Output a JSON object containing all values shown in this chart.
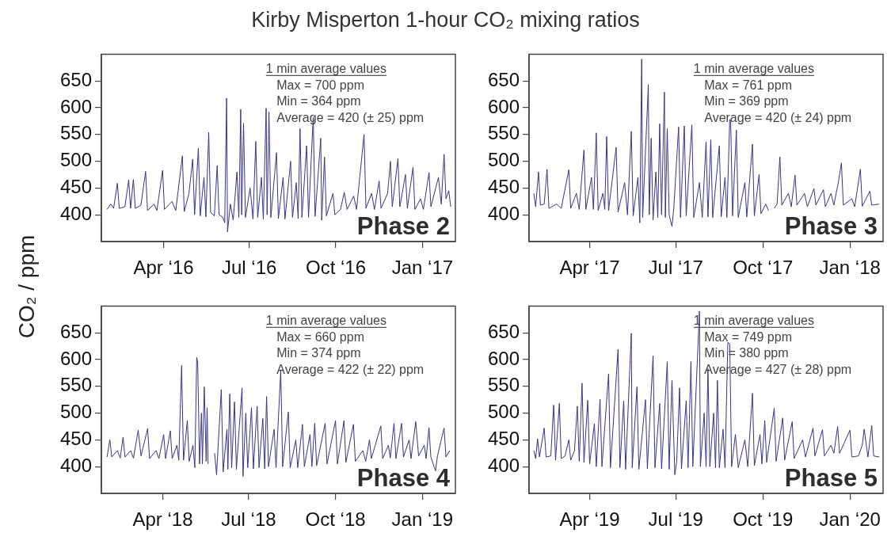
{
  "chart_data": [
    {
      "type": "line",
      "title": "Kirby Misperton 1-hour CO₂ mixing ratios",
      "ylabel": "CO₂ / ppm",
      "annotations": [
        "1 min average values",
        "Max = 700 ppm",
        "Min = 364 ppm",
        "Average = 420 (± 25) ppm",
        "Phase 2"
      ],
      "xlim": [
        "2016-01-26",
        "2017-02-05"
      ],
      "ylim": [
        350,
        700
      ],
      "yticks": [
        400,
        450,
        500,
        550,
        600,
        650
      ],
      "xticks": [
        {
          "value": "2016-04-01",
          "label": "Apr ‘16"
        },
        {
          "value": "2016-07-01",
          "label": "Jul ‘16"
        },
        {
          "value": "2016-10-01",
          "label": "Oct ‘16"
        },
        {
          "value": "2017-01-01",
          "label": "Jan ‘17"
        }
      ],
      "x": [
        "2016-02-01",
        "2016-02-05",
        "2016-02-08",
        "2016-02-12",
        "2016-02-14",
        "2016-02-20",
        "2016-02-24",
        "2016-02-26",
        "2016-02-29",
        "2016-03-02",
        "2016-03-08",
        "2016-03-13",
        "2016-03-15",
        "2016-03-22",
        "2016-03-25",
        "2016-03-31",
        "2016-04-02",
        "2016-04-10",
        "2016-04-14",
        "2016-04-21",
        "2016-04-23",
        "2016-04-28",
        "2016-05-02",
        "2016-05-04",
        "2016-05-08",
        "2016-05-10",
        "2016-05-14",
        "2016-05-16",
        "2016-05-19",
        "2016-05-21",
        "2016-05-25",
        "2016-05-28",
        "2016-05-30",
        "2016-06-03",
        "2016-06-05",
        "2016-06-07",
        "2016-06-08",
        "2016-06-11",
        "2016-06-14",
        "2016-06-18",
        "2016-06-20",
        "2016-06-22",
        "2016-06-23",
        "2016-06-25",
        "2016-06-27",
        "2016-07-02",
        "2016-07-05",
        "2016-07-08",
        "2016-07-10",
        "2016-07-14",
        "2016-07-16",
        "2016-07-19",
        "2016-07-20",
        "2016-07-22",
        "2016-07-24",
        "2016-07-30",
        "2016-08-01",
        "2016-08-06",
        "2016-08-08",
        "2016-08-14",
        "2016-08-16",
        "2016-08-20",
        "2016-08-22",
        "2016-08-24",
        "2016-08-26",
        "2016-08-31",
        "2016-09-02",
        "2016-09-07",
        "2016-09-09",
        "2016-09-15",
        "2016-09-16",
        "2016-09-19",
        "2016-09-21",
        "2016-09-28",
        "2016-09-30",
        "2016-10-06",
        "2016-10-10",
        "2016-10-13",
        "2016-10-20",
        "2016-10-23",
        "2016-10-31",
        "2016-11-02",
        "2016-11-08",
        "2016-11-11",
        "2016-11-16",
        "2016-11-18",
        "2016-11-25",
        "2016-11-28",
        "2016-11-30",
        "2016-12-06",
        "2016-12-08",
        "2016-12-14",
        "2016-12-16",
        "2016-12-22",
        "2016-12-24",
        "2016-12-30",
        "2017-01-02",
        "2017-01-08",
        "2017-01-10",
        "2017-01-18",
        "2017-01-21",
        "2017-01-24",
        "2017-01-26",
        "2017-01-29",
        "2017-01-31"
      ],
      "series": [
        {
          "color": "#38358a",
          "values": [
            410,
            420,
            412,
            459,
            412,
            415,
            465,
            412,
            466,
            412,
            418,
            481,
            408,
            420,
            408,
            483,
            410,
            425,
            408,
            510,
            406,
            440,
            504,
            400,
            524,
            398,
            470,
            396,
            554,
            405,
            398,
            492,
            400,
            395,
            385,
            618,
            368,
            420,
            390,
            480,
            395,
            597,
            400,
            571,
            395,
            450,
            392,
            537,
            395,
            470,
            392,
            599,
            400,
            592,
            395,
            516,
            393,
            470,
            392,
            500,
            395,
            460,
            393,
            561,
            395,
            529,
            395,
            582,
            397,
            543,
            390,
            508,
            398,
            440,
            400,
            410,
            442,
            410,
            435,
            410,
            550,
            412,
            440,
            410,
            463,
            412,
            440,
            500,
            415,
            505,
            415,
            475,
            412,
            489,
            410,
            430,
            410,
            479,
            415,
            470,
            420,
            513,
            430,
            445,
            415
          ]
        }
      ]
    },
    {
      "type": "line",
      "annotations": [
        "1 min average values",
        "Max = 761 ppm",
        "Min = 369 ppm",
        "Average = 420 (± 24) ppm",
        "Phase 3"
      ],
      "xlim": [
        "2017-01-27",
        "2018-02-05"
      ],
      "ylim": [
        350,
        700
      ],
      "yticks": [
        400,
        450,
        500,
        550,
        600,
        650
      ],
      "xticks": [
        {
          "value": "2017-04-01",
          "label": "Apr ‘17"
        },
        {
          "value": "2017-07-01",
          "label": "Jul ‘17"
        },
        {
          "value": "2017-10-01",
          "label": "Oct ‘17"
        },
        {
          "value": "2018-01-01",
          "label": "Jan ‘18"
        }
      ],
      "x": [
        "2017-02-01",
        "2017-02-03",
        "2017-02-06",
        "2017-02-08",
        "2017-02-12",
        "2017-02-15",
        "2017-02-17",
        "2017-02-25",
        "2017-03-02",
        "2017-03-10",
        "2017-03-12",
        "2017-03-18",
        "2017-03-21",
        "2017-03-26",
        "2017-03-28",
        "2017-04-03",
        "2017-04-05",
        "2017-04-08",
        "2017-04-10",
        "2017-04-15",
        "2017-04-17",
        "2017-04-19",
        "2017-04-21",
        "2017-04-29",
        "2017-05-01",
        "2017-05-08",
        "2017-05-11",
        "2017-05-15",
        "2017-05-17",
        "2017-05-22",
        "2017-05-24",
        "2017-05-26",
        "2017-05-27",
        "2017-06-02",
        "2017-06-03",
        "2017-06-05",
        "2017-06-07",
        "2017-06-10",
        "2017-06-12",
        "2017-06-14",
        "2017-06-16",
        "2017-06-19",
        "2017-06-20",
        "2017-06-22",
        "2017-06-24",
        "2017-06-27",
        "2017-06-29",
        "2017-07-04",
        "2017-07-06",
        "2017-07-10",
        "2017-07-12",
        "2017-07-18",
        "2017-07-20",
        "2017-07-26",
        "2017-07-29",
        "2017-08-02",
        "2017-08-04",
        "2017-08-07",
        "2017-08-09",
        "2017-08-16",
        "2017-08-18",
        "2017-08-22",
        "2017-08-24",
        "2017-08-27",
        "2017-08-28",
        "2017-08-30",
        "2017-09-03",
        "2017-09-05",
        "2017-09-12",
        "2017-09-14",
        "2017-09-20",
        "2017-09-22",
        "2017-09-27",
        "2017-09-29",
        "2017-10-04",
        "2017-10-07",
        "2017-10-10",
        "2017-10-13",
        "2017-10-16",
        "2017-10-19",
        "2017-10-21",
        "2017-10-28",
        "2017-10-31",
        "2017-11-04",
        "2017-11-06",
        "2017-11-14",
        "2017-11-17",
        "2017-11-24",
        "2017-11-26",
        "2017-12-04",
        "2017-12-06",
        "2017-12-12",
        "2017-12-15",
        "2017-12-20",
        "2017-12-23",
        "2017-12-25",
        "2018-01-03",
        "2018-01-06",
        "2018-01-12",
        "2018-01-14",
        "2018-01-22",
        "2018-01-24",
        "2018-02-01"
      ],
      "series": [
        {
          "color": "#38358a",
          "values": [
            440,
            415,
            480,
            418,
            420,
            485,
            412,
            420,
            412,
            484,
            412,
            440,
            410,
            521,
            410,
            470,
            410,
            553,
            408,
            440,
            410,
            546,
            408,
            526,
            405,
            460,
            400,
            556,
            398,
            470,
            385,
            691,
            395,
            643,
            400,
            543,
            390,
            480,
            395,
            570,
            400,
            629,
            395,
            561,
            400,
            378,
            415,
            564,
            395,
            566,
            398,
            568,
            395,
            460,
            395,
            536,
            396,
            540,
            395,
            529,
            396,
            470,
            395,
            578,
            574,
            398,
            558,
            395,
            460,
            396,
            532,
            398,
            475,
            402,
            420,
            408,
            null,
            412,
            420,
            508,
            418,
            440,
            415,
            474,
            418,
            440,
            415,
            449,
            418,
            447,
            415,
            440,
            418,
            463,
            497,
            418,
            430,
            415,
            485,
            416,
            444,
            418,
            420
          ]
        }
      ]
    },
    {
      "type": "line",
      "annotations": [
        "1 min average values",
        "Max = 660 ppm",
        "Min = 374 ppm",
        "Average = 422 (± 22) ppm",
        "Phase 4"
      ],
      "xlim": [
        "2018-01-26",
        "2019-02-05"
      ],
      "ylim": [
        350,
        700
      ],
      "yticks": [
        400,
        450,
        500,
        550,
        600,
        650
      ],
      "xticks": [
        {
          "value": "2018-04-01",
          "label": "Apr ‘18"
        },
        {
          "value": "2018-07-01",
          "label": "Jul ‘18"
        },
        {
          "value": "2018-10-01",
          "label": "Oct ‘18"
        },
        {
          "value": "2019-01-01",
          "label": "Jan ‘19"
        }
      ],
      "x": [
        "2018-02-01",
        "2018-02-04",
        "2018-02-06",
        "2018-02-12",
        "2018-02-15",
        "2018-02-18",
        "2018-02-20",
        "2018-02-26",
        "2018-03-01",
        "2018-03-06",
        "2018-03-09",
        "2018-03-16",
        "2018-03-18",
        "2018-03-25",
        "2018-03-28",
        "2018-04-02",
        "2018-04-04",
        "2018-04-09",
        "2018-04-11",
        "2018-04-16",
        "2018-04-18",
        "2018-04-21",
        "2018-04-23",
        "2018-04-27",
        "2018-04-29",
        "2018-05-03",
        "2018-05-05",
        "2018-05-07",
        "2018-05-08",
        "2018-05-10",
        "2018-05-12",
        "2018-05-13",
        "2018-05-15",
        "2018-05-17",
        "2018-05-18",
        "2018-05-19",
        "2018-05-22",
        "2018-05-26",
        "2018-05-28",
        "2018-06-02",
        "2018-06-04",
        "2018-06-08",
        "2018-06-09",
        "2018-06-11",
        "2018-06-13",
        "2018-06-16",
        "2018-06-18",
        "2018-06-24",
        "2018-06-25",
        "2018-06-28",
        "2018-06-30",
        "2018-07-04",
        "2018-07-06",
        "2018-07-10",
        "2018-07-12",
        "2018-07-16",
        "2018-07-18",
        "2018-07-20",
        "2018-07-22",
        "2018-07-28",
        "2018-07-30",
        "2018-08-04",
        "2018-08-06",
        "2018-08-12",
        "2018-08-14",
        "2018-08-20",
        "2018-08-22",
        "2018-08-27",
        "2018-08-29",
        "2018-09-04",
        "2018-09-06",
        "2018-09-09",
        "2018-09-11",
        "2018-09-20",
        "2018-09-22",
        "2018-10-01",
        "2018-10-03",
        "2018-10-10",
        "2018-10-12",
        "2018-10-20",
        "2018-10-22",
        "2018-10-30",
        "2018-11-02",
        "2018-11-06",
        "2018-11-08",
        "2018-11-18",
        "2018-11-20",
        "2018-11-26",
        "2018-11-28",
        "2018-12-02",
        "2018-12-04",
        "2018-12-10",
        "2018-12-12",
        "2018-12-18",
        "2018-12-20",
        "2018-12-25",
        "2018-12-28",
        "2019-01-03",
        "2019-01-05",
        "2019-01-08",
        "2019-01-10",
        "2019-01-15",
        "2019-01-17",
        "2019-01-24",
        "2019-01-26",
        "2019-01-30"
      ],
      "series": [
        {
          "color": "#38358a",
          "values": [
            418,
            450,
            418,
            430,
            416,
            455,
            418,
            430,
            416,
            468,
            420,
            471,
            415,
            430,
            415,
            460,
            415,
            467,
            415,
            440,
            412,
            589,
            412,
            486,
            410,
            440,
            398,
            604,
            596,
            405,
            500,
            405,
            549,
            410,
            510,
            405,
            null,
            425,
            385,
            544,
            390,
            470,
            395,
            536,
            398,
            521,
            395,
            547,
            382,
            500,
            398,
            510,
            396,
            513,
            398,
            490,
            396,
            531,
            400,
            470,
            398,
            581,
            400,
            502,
            398,
            450,
            398,
            479,
            400,
            460,
            400,
            481,
            402,
            481,
            405,
            486,
            405,
            486,
            408,
            479,
            410,
            430,
            410,
            450,
            415,
            476,
            415,
            440,
            416,
            481,
            415,
            481,
            418,
            450,
            415,
            484,
            420,
            440,
            415,
            473,
            418,
            392,
            420,
            472,
            418,
            430
          ]
        }
      ]
    },
    {
      "type": "line",
      "annotations": [
        "1 min average values",
        "Max = 749 ppm",
        "Min = 380 ppm",
        "Average = 427 (± 28) ppm",
        "Phase 5"
      ],
      "xlim": [
        "2019-01-27",
        "2020-02-05"
      ],
      "ylim": [
        350,
        700
      ],
      "yticks": [
        400,
        450,
        500,
        550,
        600,
        650
      ],
      "xticks": [
        {
          "value": "2019-04-01",
          "label": "Apr ‘19"
        },
        {
          "value": "2019-07-01",
          "label": "Jul ‘19"
        },
        {
          "value": "2019-10-01",
          "label": "Oct ‘19"
        },
        {
          "value": "2020-01-01",
          "label": "Jan ‘20"
        }
      ],
      "x": [
        "2019-02-01",
        "2019-02-03",
        "2019-02-05",
        "2019-02-07",
        "2019-02-12",
        "2019-02-14",
        "2019-02-19",
        "2019-02-22",
        "2019-02-24",
        "2019-02-28",
        "2019-03-02",
        "2019-03-06",
        "2019-03-10",
        "2019-03-12",
        "2019-03-16",
        "2019-03-19",
        "2019-03-21",
        "2019-03-24",
        "2019-03-26",
        "2019-03-30",
        "2019-04-01",
        "2019-04-06",
        "2019-04-08",
        "2019-04-12",
        "2019-04-14",
        "2019-04-21",
        "2019-04-23",
        "2019-05-01",
        "2019-05-03",
        "2019-05-07",
        "2019-05-09",
        "2019-05-15",
        "2019-05-16",
        "2019-05-21",
        "2019-05-23",
        "2019-05-30",
        "2019-06-01",
        "2019-06-07",
        "2019-06-09",
        "2019-06-14",
        "2019-06-16",
        "2019-06-22",
        "2019-06-24",
        "2019-06-27",
        "2019-06-30",
        "2019-07-02",
        "2019-07-05",
        "2019-07-07",
        "2019-07-12",
        "2019-07-14",
        "2019-07-17",
        "2019-07-19",
        "2019-07-26",
        "2019-07-27",
        "2019-07-31",
        "2019-08-02",
        "2019-08-04",
        "2019-08-06",
        "2019-08-10",
        "2019-08-12",
        "2019-08-14",
        "2019-08-16",
        "2019-08-20",
        "2019-08-22",
        "2019-08-25",
        "2019-08-27",
        "2019-08-29",
        "2019-09-02",
        "2019-09-05",
        "2019-09-12",
        "2019-09-15",
        "2019-09-20",
        "2019-09-22",
        "2019-09-28",
        "2019-09-30",
        "2019-10-03",
        "2019-10-05",
        "2019-10-13",
        "2019-10-15",
        "2019-10-22",
        "2019-10-24",
        "2019-11-01",
        "2019-11-03",
        "2019-11-12",
        "2019-11-15",
        "2019-11-23",
        "2019-11-25",
        "2019-12-03",
        "2019-12-05",
        "2019-12-12",
        "2019-12-15",
        "2019-12-19",
        "2019-12-21",
        "2020-01-01",
        "2020-01-03",
        "2020-01-10",
        "2020-01-14",
        "2020-01-16",
        "2020-01-20",
        "2020-01-24",
        "2020-01-26",
        "2020-02-01"
      ],
      "series": [
        {
          "color": "#38358a",
          "values": [
            430,
            415,
            452,
            418,
            472,
            418,
            420,
            515,
            412,
            518,
            415,
            420,
            450,
            412,
            430,
            513,
            410,
            556,
            408,
            524,
            405,
            480,
            400,
            526,
            400,
            573,
            398,
            619,
            398,
            523,
            395,
            649,
            398,
            549,
            395,
            525,
            396,
            607,
            398,
            518,
            396,
            596,
            395,
            561,
            385,
            410,
            547,
            396,
            523,
            398,
            596,
            400,
            690,
            400,
            500,
            400,
            583,
            400,
            500,
            398,
            561,
            398,
            470,
            398,
            632,
            629,
            400,
            460,
            398,
            450,
            400,
            537,
            402,
            460,
            405,
            486,
            408,
            509,
            410,
            491,
            412,
            484,
            415,
            450,
            418,
            472,
            420,
            469,
            420,
            440,
            425,
            475,
            425,
            468,
            418,
            420,
            440,
            470,
            418,
            477,
            420,
            418
          ]
        }
      ]
    }
  ]
}
